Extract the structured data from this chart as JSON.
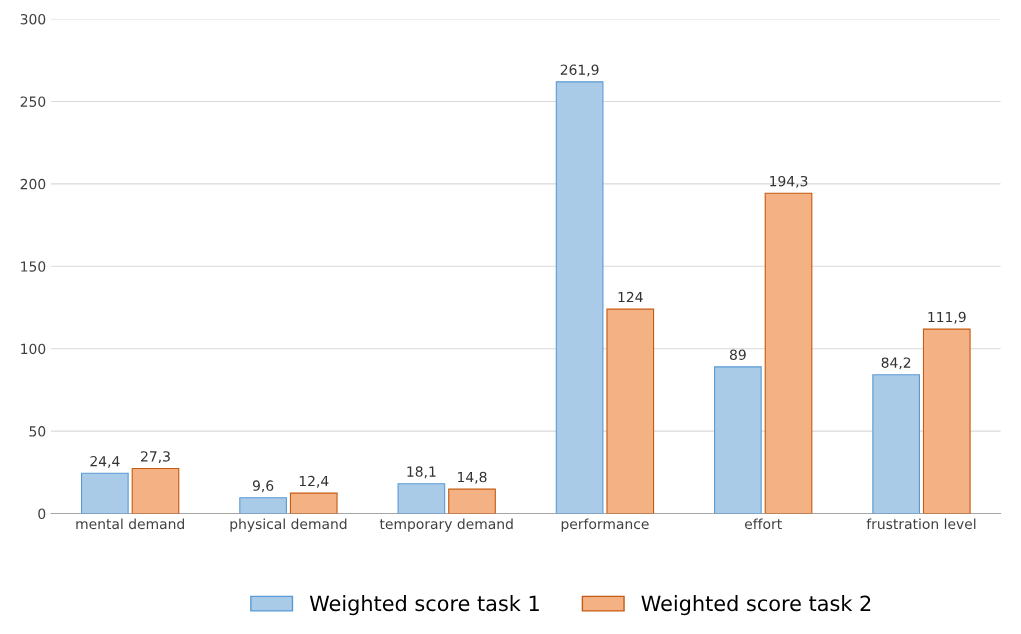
{
  "chart_data": {
    "type": "bar",
    "categories": [
      "mental demand",
      "physical demand",
      "temporary demand",
      "performance",
      "effort",
      "frustration level"
    ],
    "series": [
      {
        "name": "Weighted score task 1",
        "color": "#a9cbe8",
        "values": [
          24.4,
          9.6,
          18.1,
          261.9,
          89,
          84.2
        ],
        "value_labels": [
          "24,4",
          "9,6",
          "18,1",
          "261,9",
          "89",
          "84,2"
        ]
      },
      {
        "name": "Weighted score task 2",
        "color": "#f4b183",
        "values": [
          27.3,
          12.4,
          14.8,
          124,
          194.3,
          111.9
        ],
        "value_labels": [
          "27,3",
          "12,4",
          "14,8",
          "124",
          "194,3",
          "111,9"
        ]
      }
    ],
    "ylim": [
      0,
      300
    ],
    "yticks": [
      0,
      50,
      100,
      150,
      200,
      250,
      300
    ],
    "grid": "y",
    "legend": "bottom"
  }
}
